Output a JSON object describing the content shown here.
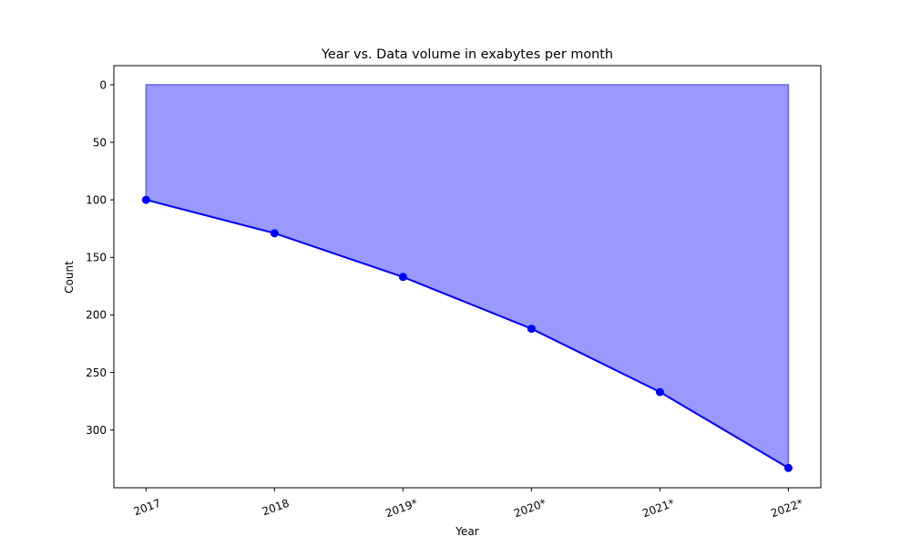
{
  "chart_data": {
    "type": "area",
    "title": "Year vs. Data volume in exabytes per month",
    "xlabel": "Year",
    "ylabel": "Count",
    "categories": [
      "2017",
      "2018",
      "2019*",
      "2020*",
      "2021*",
      "2022*"
    ],
    "series": [
      {
        "values": [
          100,
          129,
          167,
          212,
          267,
          333
        ]
      }
    ],
    "ylim": [
      0,
      350
    ],
    "y_inverted": true,
    "yticks": [
      0,
      50,
      100,
      150,
      200,
      250,
      300
    ],
    "xtick_rotation_deg": 20,
    "grid": false,
    "colors": {
      "line": "#0000ff",
      "fill": "#9999ff",
      "fill_edge": "#6666ee"
    }
  }
}
